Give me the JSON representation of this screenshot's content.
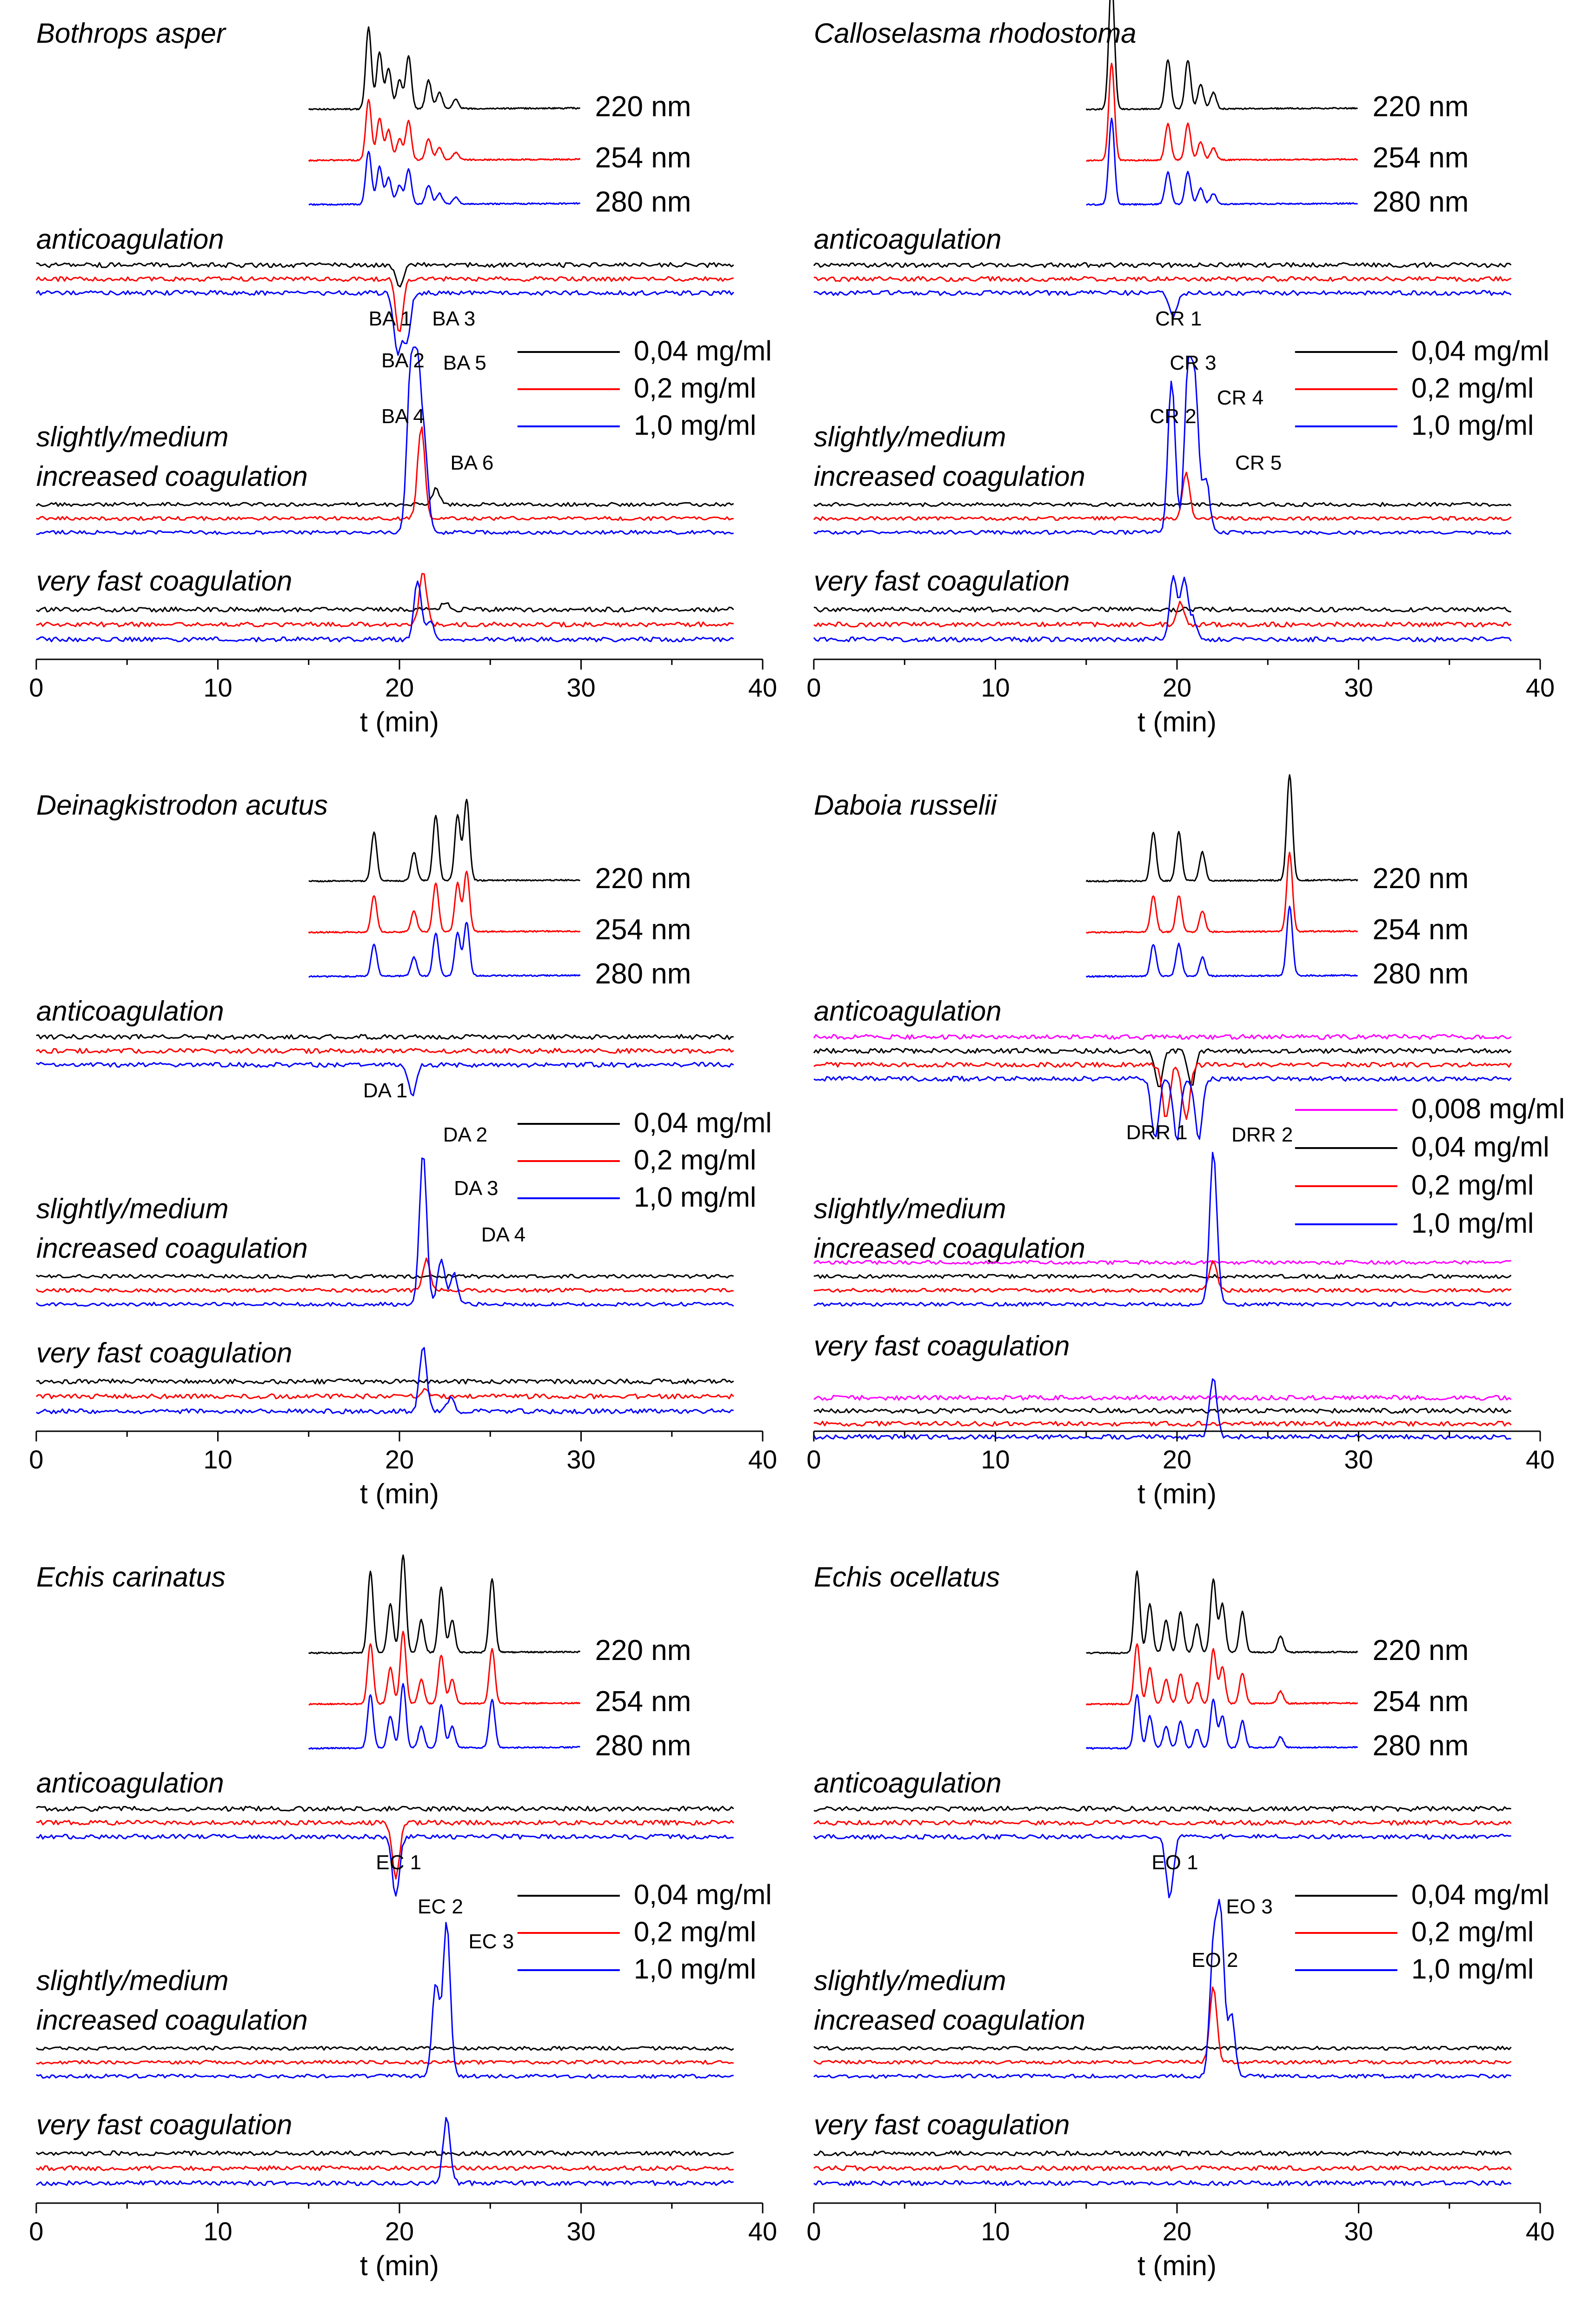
{
  "chart_data": [
    {
      "type": "line",
      "panel": "top-left",
      "title": "Bothrops asper",
      "xlabel": "t (min)",
      "xlim": [
        0,
        40
      ],
      "xticks": [
        "0",
        "10",
        "20",
        "30",
        "40"
      ],
      "colors": {
        "black": "#000000",
        "red": "#ff0000",
        "blue": "#0000ff",
        "magenta": "#ff00ff"
      },
      "uv_wavelengths": [
        "220 nm",
        "254 nm",
        "280 nm"
      ],
      "uv_range": [
        15,
        30
      ],
      "uv_peaks": [
        [
          18.3,
          1.0
        ],
        [
          18.9,
          0.7
        ],
        [
          19.4,
          0.5
        ],
        [
          20.0,
          0.35
        ],
        [
          20.5,
          0.65
        ],
        [
          21.6,
          0.35
        ],
        [
          22.2,
          0.2
        ],
        [
          23.1,
          0.12
        ]
      ],
      "categories": [
        "anticoagulation",
        "slightly/medium\nincreased coagulation",
        "very fast coagulation"
      ],
      "concentrations": [
        "0,04 mg/ml",
        "0,2 mg/ml",
        "1,0 mg/ml"
      ],
      "concentration_colors": [
        "#000000",
        "#ff0000",
        "#0000ff"
      ],
      "bioassay_range": [
        0,
        38.5
      ],
      "anticoag_peaks": [
        [
          [
            20.0,
            -0.4
          ]
        ],
        [
          [
            20.0,
            -0.9
          ]
        ],
        [
          [
            19.9,
            -1.0
          ],
          [
            20.4,
            -0.8
          ]
        ]
      ],
      "coag_peaks": [
        [
          [
            22.0,
            0.1
          ]
        ],
        [
          [
            21.2,
            0.6
          ]
        ],
        [
          [
            20.6,
            1.0
          ],
          [
            21.0,
            1.0
          ],
          [
            21.4,
            0.5
          ]
        ]
      ],
      "fast_peaks": [
        [
          [
            22.5,
            0.12
          ]
        ],
        [
          [
            21.3,
            0.8
          ]
        ],
        [
          [
            21.0,
            0.9
          ],
          [
            21.7,
            0.3
          ]
        ]
      ],
      "peak_labels": [
        {
          "text": "BA 1",
          "t": 18.3,
          "pos": "anticoag"
        },
        {
          "text": "BA 2",
          "t": 19.0,
          "pos": "anticoag-low"
        },
        {
          "text": "BA 3",
          "t": 21.8,
          "pos": "anticoag"
        },
        {
          "text": "BA 4",
          "t": 19.0,
          "pos": "coag-mid"
        },
        {
          "text": "BA 5",
          "t": 22.4,
          "pos": "coag-top"
        },
        {
          "text": "BA 6",
          "t": 22.8,
          "pos": "coag-low"
        }
      ]
    },
    {
      "type": "line",
      "panel": "top-right",
      "title": "Calloselasma rhodostoma",
      "xlabel": "t (min)",
      "xlim": [
        0,
        40
      ],
      "xticks": [
        "0",
        "10",
        "20",
        "30",
        "40"
      ],
      "uv_wavelengths": [
        "220 nm",
        "254 nm",
        "280 nm"
      ],
      "uv_range": [
        15,
        30
      ],
      "uv_peaks": [
        [
          16.4,
          1.6
        ],
        [
          19.5,
          0.6
        ],
        [
          20.6,
          0.6
        ],
        [
          21.3,
          0.3
        ],
        [
          22.0,
          0.2
        ]
      ],
      "categories": [
        "anticoagulation",
        "slightly/medium\nincreased coagulation",
        "very fast coagulation"
      ],
      "concentrations": [
        "0,04 mg/ml",
        "0,2 mg/ml",
        "1,0 mg/ml"
      ],
      "concentration_colors": [
        "#000000",
        "#ff0000",
        "#0000ff"
      ],
      "bioassay_range": [
        0,
        38.5
      ],
      "anticoag_peaks": [
        [],
        [],
        [
          [
            19.8,
            -0.4
          ]
        ]
      ],
      "coag_peaks": [
        [],
        [
          [
            20.5,
            0.3
          ]
        ],
        [
          [
            19.7,
            1.0
          ],
          [
            20.6,
            1.0
          ],
          [
            21.0,
            0.9
          ],
          [
            21.6,
            0.35
          ]
        ]
      ],
      "fast_peaks": [
        [],
        [
          [
            20.2,
            0.35
          ]
        ],
        [
          [
            19.8,
            1.0
          ],
          [
            20.4,
            0.9
          ],
          [
            20.9,
            0.3
          ]
        ]
      ],
      "peak_labels": [
        {
          "text": "CR 1",
          "t": 18.8,
          "pos": "anticoag"
        },
        {
          "text": "CR 2",
          "t": 18.5,
          "pos": "coag-mid"
        },
        {
          "text": "CR 3",
          "t": 19.6,
          "pos": "coag-top"
        },
        {
          "text": "CR 4",
          "t": 22.2,
          "pos": "coag-upper"
        },
        {
          "text": "CR 5",
          "t": 23.2,
          "pos": "coag-low"
        }
      ]
    },
    {
      "type": "line",
      "panel": "middle-left",
      "title": "Deinagkistrodon acutus",
      "xlabel": "t (min)",
      "xlim": [
        0,
        40
      ],
      "xticks": [
        "0",
        "10",
        "20",
        "30",
        "40"
      ],
      "uv_wavelengths": [
        "220 nm",
        "254 nm",
        "280 nm"
      ],
      "uv_range": [
        15,
        30
      ],
      "uv_peaks": [
        [
          18.6,
          0.6
        ],
        [
          20.8,
          0.35
        ],
        [
          22.0,
          0.8
        ],
        [
          23.2,
          0.8
        ],
        [
          23.7,
          1.0
        ]
      ],
      "categories": [
        "anticoagulation",
        "slightly/medium\nincreased coagulation",
        "very fast coagulation"
      ],
      "concentrations": [
        "0,04 mg/ml",
        "0,2 mg/ml",
        "1,0 mg/ml"
      ],
      "concentration_colors": [
        "#000000",
        "#ff0000",
        "#0000ff"
      ],
      "bioassay_range": [
        0,
        38.5
      ],
      "anticoag_peaks": [
        [],
        [],
        [
          [
            20.7,
            -0.5
          ]
        ]
      ],
      "coag_peaks": [
        [],
        [
          [
            21.5,
            0.2
          ]
        ],
        [
          [
            21.3,
            1.0
          ],
          [
            22.3,
            0.3
          ],
          [
            23.0,
            0.2
          ]
        ]
      ],
      "fast_peaks": [
        [],
        [
          [
            21.4,
            0.1
          ]
        ],
        [
          [
            21.3,
            1.0
          ],
          [
            22.8,
            0.2
          ]
        ]
      ],
      "peak_labels": [
        {
          "text": "DA 1",
          "t": 18.0,
          "pos": "anticoag"
        },
        {
          "text": "DA 2",
          "t": 22.4,
          "pos": "coag-top"
        },
        {
          "text": "DA 3",
          "t": 23.0,
          "pos": "coag-mid"
        },
        {
          "text": "DA 4",
          "t": 24.5,
          "pos": "coag-low"
        }
      ]
    },
    {
      "type": "line",
      "panel": "middle-right",
      "title": "Daboia russelii",
      "xlabel": "t (min)",
      "xlim": [
        0,
        40
      ],
      "xticks": [
        "0",
        "10",
        "20",
        "30",
        "40"
      ],
      "uv_wavelengths": [
        "220 nm",
        "254 nm",
        "280 nm"
      ],
      "uv_range": [
        15,
        30
      ],
      "uv_peaks": [
        [
          18.7,
          0.6
        ],
        [
          20.1,
          0.6
        ],
        [
          21.4,
          0.35
        ],
        [
          26.2,
          1.3
        ]
      ],
      "categories": [
        "anticoagulation",
        "slightly/medium\nincreased coagulation",
        "very fast coagulation"
      ],
      "concentrations": [
        "0,008 mg/ml",
        "0,04 mg/ml",
        "0,2 mg/ml",
        "1,0 mg/ml"
      ],
      "concentration_colors": [
        "#ff00ff",
        "#000000",
        "#ff0000",
        "#0000ff"
      ],
      "bioassay_range": [
        0,
        38.5
      ],
      "anticoag_peaks": [
        [],
        [
          [
            19.0,
            -0.6
          ],
          [
            20.8,
            -0.6
          ]
        ],
        [
          [
            19.4,
            -0.9
          ],
          [
            20.5,
            -0.9
          ]
        ],
        [
          [
            18.8,
            -1.0
          ],
          [
            20.0,
            -1.0
          ],
          [
            21.2,
            -1.0
          ]
        ]
      ],
      "coag_peaks": [
        [],
        [],
        [
          [
            22.0,
            0.2
          ]
        ],
        [
          [
            22.0,
            1.0
          ]
        ]
      ],
      "fast_peaks": [
        [],
        [],
        [],
        [
          [
            22.0,
            0.9
          ]
        ]
      ],
      "peak_labels": [
        {
          "text": "DRR 1",
          "t": 17.2,
          "pos": "anticoag-low"
        },
        {
          "text": "DRR 2",
          "t": 23.0,
          "pos": "coag-top"
        }
      ]
    },
    {
      "type": "line",
      "panel": "bottom-left",
      "title": "Echis carinatus",
      "xlabel": "t (min)",
      "xlim": [
        0,
        40
      ],
      "xticks": [
        "0",
        "10",
        "20",
        "30",
        "40"
      ],
      "uv_wavelengths": [
        "220 nm",
        "254 nm",
        "280 nm"
      ],
      "uv_range": [
        15,
        30
      ],
      "uv_peaks": [
        [
          18.4,
          1.0
        ],
        [
          19.5,
          0.6
        ],
        [
          20.2,
          1.2
        ],
        [
          21.2,
          0.4
        ],
        [
          22.3,
          0.8
        ],
        [
          22.9,
          0.4
        ],
        [
          25.1,
          0.9
        ]
      ],
      "categories": [
        "anticoagulation",
        "slightly/medium\nincreased coagulation",
        "very fast coagulation"
      ],
      "concentrations": [
        "0,04 mg/ml",
        "0,2 mg/ml",
        "1,0 mg/ml"
      ],
      "concentration_colors": [
        "#000000",
        "#ff0000",
        "#0000ff"
      ],
      "bioassay_range": [
        0,
        38.5
      ],
      "anticoag_peaks": [
        [],
        [
          [
            19.8,
            -0.9
          ]
        ],
        [
          [
            19.8,
            -1.0
          ]
        ]
      ],
      "coag_peaks": [
        [],
        [],
        [
          [
            22.0,
            0.6
          ],
          [
            22.6,
            1.0
          ]
        ]
      ],
      "fast_peaks": [
        [],
        [],
        [
          [
            22.6,
            1.0
          ]
        ]
      ],
      "peak_labels": [
        {
          "text": "EC 1",
          "t": 18.7,
          "pos": "anticoag"
        },
        {
          "text": "EC 2",
          "t": 21.0,
          "pos": "coag-top"
        },
        {
          "text": "EC 3",
          "t": 23.8,
          "pos": "coag-upper"
        }
      ]
    },
    {
      "type": "line",
      "panel": "bottom-right",
      "title": "Echis ocellatus",
      "xlabel": "t (min)",
      "xlim": [
        0,
        40
      ],
      "xticks": [
        "0",
        "10",
        "20",
        "30",
        "40"
      ],
      "uv_wavelengths": [
        "220 nm",
        "254 nm",
        "280 nm"
      ],
      "uv_range": [
        15,
        30
      ],
      "uv_peaks": [
        [
          17.8,
          1.0
        ],
        [
          18.5,
          0.6
        ],
        [
          19.4,
          0.4
        ],
        [
          20.2,
          0.5
        ],
        [
          21.1,
          0.35
        ],
        [
          22.0,
          0.9
        ],
        [
          22.5,
          0.6
        ],
        [
          23.6,
          0.5
        ],
        [
          25.7,
          0.2
        ]
      ],
      "categories": [
        "anticoagulation",
        "slightly/medium\nincreased coagulation",
        "very fast coagulation"
      ],
      "concentrations": [
        "0,04 mg/ml",
        "0,2 mg/ml",
        "1,0 mg/ml"
      ],
      "concentration_colors": [
        "#000000",
        "#ff0000",
        "#0000ff"
      ],
      "bioassay_range": [
        0,
        38.5
      ],
      "anticoag_peaks": [
        [],
        [],
        [
          [
            19.6,
            -1.0
          ]
        ]
      ],
      "coag_peaks": [
        [],
        [
          [
            22.0,
            0.5
          ]
        ],
        [
          [
            22.0,
            0.8
          ],
          [
            22.4,
            1.0
          ],
          [
            23.0,
            0.4
          ]
        ]
      ],
      "fast_peaks": [
        [],
        [],
        []
      ],
      "peak_labels": [
        {
          "text": "EO 1",
          "t": 18.6,
          "pos": "anticoag"
        },
        {
          "text": "EO 2",
          "t": 20.8,
          "pos": "coag-mid"
        },
        {
          "text": "EO 3",
          "t": 22.7,
          "pos": "coag-top"
        }
      ]
    }
  ]
}
